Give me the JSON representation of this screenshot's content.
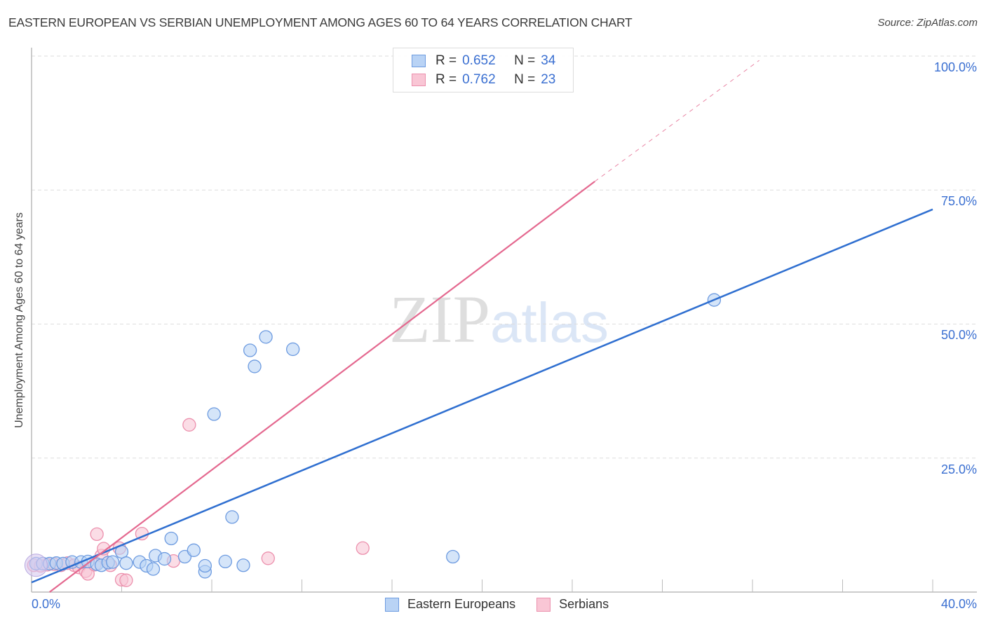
{
  "header": {
    "title": "EASTERN EUROPEAN VS SERBIAN UNEMPLOYMENT AMONG AGES 60 TO 64 YEARS CORRELATION CHART",
    "source": "Source: ZipAtlas.com"
  },
  "watermark": {
    "zip": "ZIP",
    "atlas": "atlas"
  },
  "legend": {
    "series": [
      {
        "name": "Eastern Europeans",
        "r_label": "R =",
        "r_value": "0.652",
        "n_label": "N =",
        "n_value": "34",
        "fill": "#b9d3f5",
        "stroke": "#6d9be0"
      },
      {
        "name": "Serbians",
        "r_label": "R =",
        "r_value": "0.762",
        "n_label": "N =",
        "n_value": "23",
        "fill": "#f9c6d5",
        "stroke": "#ec90ad"
      }
    ]
  },
  "axes": {
    "ylabel": "Unemployment Among Ages 60 to 64 years",
    "y_ticks": [
      "100.0%",
      "75.0%",
      "50.0%",
      "25.0%"
    ],
    "x_min_label": "0.0%",
    "x_max_label": "40.0%"
  },
  "colors": {
    "blue_line": "#2f6fd0",
    "pink_line": "#e4688f",
    "grid": "#dddddd",
    "tick_text": "#3a6fd1"
  },
  "chart_data": {
    "type": "scatter",
    "title": "EASTERN EUROPEAN VS SERBIAN UNEMPLOYMENT AMONG AGES 60 TO 64 YEARS CORRELATION CHART",
    "xlabel": "",
    "ylabel": "Unemployment Among Ages 60 to 64 years",
    "xlim": [
      0,
      40
    ],
    "ylim": [
      0,
      100
    ],
    "x_ticks": [
      "0.0%",
      "40.0%"
    ],
    "y_ticks": [
      "25.0%",
      "50.0%",
      "75.0%",
      "100.0%"
    ],
    "grid": true,
    "legend_position": "top-center and bottom-center",
    "series": [
      {
        "name": "Eastern Europeans",
        "R": 0.652,
        "N": 34,
        "color": "#6d9be0",
        "trendline": {
          "x": [
            0,
            40
          ],
          "y": [
            1.8,
            71.4
          ]
        },
        "points": [
          [
            0.2,
            5.3
          ],
          [
            0.5,
            5.3
          ],
          [
            0.8,
            5.3
          ],
          [
            1.1,
            5.4
          ],
          [
            1.4,
            5.3
          ],
          [
            1.8,
            5.6
          ],
          [
            2.2,
            5.6
          ],
          [
            2.5,
            5.7
          ],
          [
            2.9,
            5.2
          ],
          [
            3.1,
            5.0
          ],
          [
            3.4,
            5.5
          ],
          [
            3.6,
            5.6
          ],
          [
            4.0,
            7.5
          ],
          [
            4.2,
            5.4
          ],
          [
            4.8,
            5.6
          ],
          [
            5.1,
            4.9
          ],
          [
            5.4,
            4.3
          ],
          [
            5.5,
            6.8
          ],
          [
            5.9,
            6.2
          ],
          [
            6.2,
            10.0
          ],
          [
            6.8,
            6.6
          ],
          [
            7.2,
            7.8
          ],
          [
            7.7,
            3.8
          ],
          [
            7.7,
            4.9
          ],
          [
            8.1,
            33.2
          ],
          [
            8.6,
            5.7
          ],
          [
            8.9,
            14.0
          ],
          [
            9.4,
            5.0
          ],
          [
            9.7,
            45.1
          ],
          [
            9.9,
            42.1
          ],
          [
            10.4,
            47.6
          ],
          [
            11.6,
            45.3
          ],
          [
            18.7,
            6.6
          ],
          [
            30.3,
            54.5
          ]
        ]
      },
      {
        "name": "Serbians",
        "R": 0.762,
        "N": 23,
        "color": "#ec90ad",
        "trendline": {
          "x": [
            0.8,
            25.0
          ],
          "y": [
            0,
            76.6
          ],
          "dashed_extension": {
            "x": [
              25.0,
              32.3
            ],
            "y": [
              76.6,
              99.2
            ]
          }
        },
        "points": [
          [
            0.1,
            5.0
          ],
          [
            0.4,
            4.9
          ],
          [
            0.7,
            5.1
          ],
          [
            1.0,
            5.2
          ],
          [
            1.3,
            5.0
          ],
          [
            1.6,
            5.4
          ],
          [
            1.9,
            5.0
          ],
          [
            2.1,
            4.6
          ],
          [
            2.4,
            3.9
          ],
          [
            2.5,
            3.4
          ],
          [
            2.8,
            5.1
          ],
          [
            2.9,
            10.8
          ],
          [
            3.1,
            6.8
          ],
          [
            3.2,
            8.1
          ],
          [
            3.5,
            5.0
          ],
          [
            3.9,
            8.2
          ],
          [
            4.0,
            2.3
          ],
          [
            4.2,
            2.2
          ],
          [
            4.9,
            10.9
          ],
          [
            6.3,
            5.8
          ],
          [
            7.0,
            31.2
          ],
          [
            10.5,
            6.3
          ],
          [
            14.7,
            8.2
          ]
        ]
      }
    ]
  }
}
